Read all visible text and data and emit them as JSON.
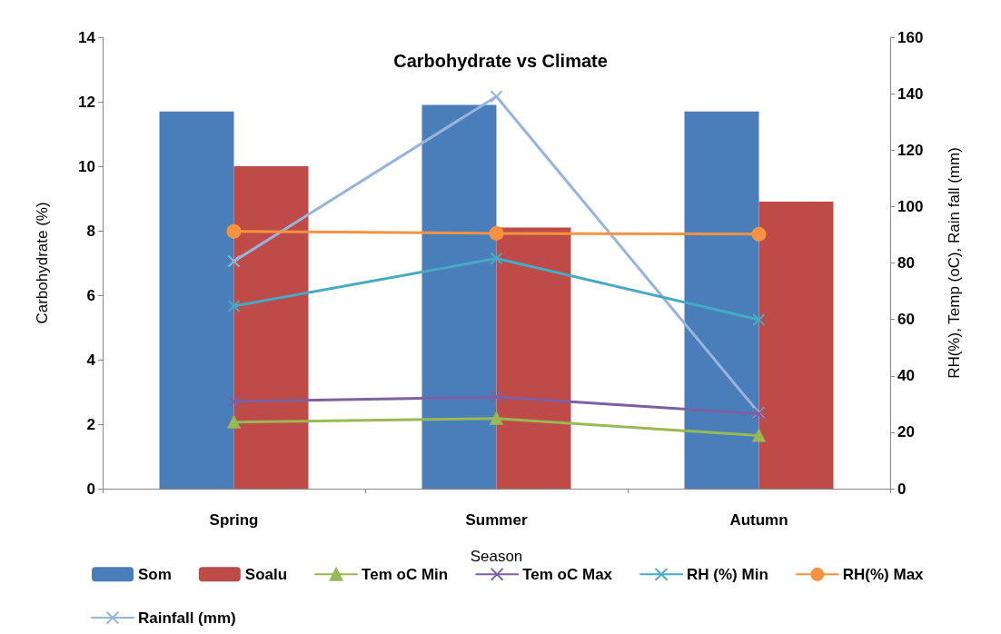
{
  "chart_data": {
    "type": "bar",
    "title": "Carbohydrate vs Climate",
    "xlabel": "Season",
    "ylabel": "Carbohydrate (%)",
    "y2label": "RH(%), Temp (oC), Rain fall (mm)",
    "categories": [
      "Spring",
      "Summer",
      "Autumn"
    ],
    "series": [
      {
        "name": "Som",
        "color": "#4a7ebb",
        "values": [
          11.7,
          11.9,
          11.7
        ]
      },
      {
        "name": "Soalu",
        "color": "#be4b48",
        "values": [
          10.0,
          8.1,
          8.9
        ]
      },
      {
        "name": "Tem oC Min",
        "type": "line",
        "axis": "y2",
        "marker": "triangle",
        "color": "#98b954",
        "values": [
          23.6,
          24.9,
          18.8
        ]
      },
      {
        "name": "Tem oC Max",
        "type": "line",
        "axis": "y2",
        "marker": "cross",
        "color": "#7d60a0",
        "values": [
          30.9,
          32.5,
          26.5
        ]
      },
      {
        "name": "RH (%) Min",
        "type": "line",
        "axis": "y2",
        "marker": "cross",
        "color": "#46aac5",
        "values": [
          64.7,
          81.6,
          59.9
        ]
      },
      {
        "name": "RH(%) Max",
        "type": "line",
        "axis": "y2",
        "marker": "circle",
        "color": "#f69240",
        "values": [
          91.2,
          90.5,
          90.2
        ]
      },
      {
        "name": "Rainfall (mm)",
        "type": "line",
        "axis": "y2",
        "marker": "cross",
        "color": "#98b4db",
        "values": [
          80.6,
          139,
          26.8
        ]
      }
    ],
    "ylim": [
      0,
      14
    ],
    "yticks": [
      0,
      2,
      4,
      6,
      8,
      10,
      12,
      14
    ],
    "y2lim": [
      0,
      160
    ],
    "y2ticks": [
      0,
      20,
      40,
      60,
      80,
      100,
      120,
      140,
      160
    ],
    "grid": false,
    "legend": "bottom"
  }
}
